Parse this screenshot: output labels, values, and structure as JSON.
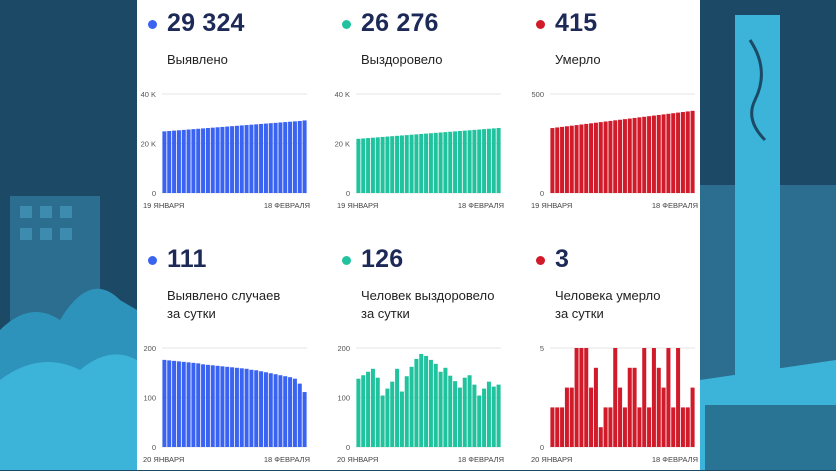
{
  "background": {
    "color": "#1c4a66",
    "accent": "#3cb4d9"
  },
  "cards": [
    {
      "value": "29 324",
      "label1": "Выявлено",
      "label2": "",
      "color": "#3a63f2",
      "chart_data": {
        "type": "bar",
        "yticks": [
          "0",
          "20 K",
          "40 K"
        ],
        "ylim": [
          0,
          40000
        ],
        "xstart": "19 ЯНВАРЯ",
        "xend": "18 ФЕВРАЛЯ",
        "values": [
          24900,
          25050,
          25200,
          25350,
          25500,
          25650,
          25800,
          25950,
          26100,
          26250,
          26400,
          26550,
          26700,
          26850,
          27000,
          27150,
          27300,
          27450,
          27600,
          27750,
          27900,
          28050,
          28200,
          28350,
          28500,
          28650,
          28800,
          28950,
          29100,
          29324
        ]
      }
    },
    {
      "value": "26 276",
      "label1": "Выздоровело",
      "label2": "",
      "color": "#21c39e",
      "chart_data": {
        "type": "bar",
        "yticks": [
          "0",
          "20 K",
          "40 K"
        ],
        "ylim": [
          0,
          40000
        ],
        "xstart": "19 ЯНВАРЯ",
        "xend": "18 ФЕВРАЛЯ",
        "values": [
          21900,
          22050,
          22200,
          22350,
          22500,
          22650,
          22800,
          22950,
          23100,
          23250,
          23400,
          23550,
          23700,
          23850,
          24000,
          24150,
          24300,
          24450,
          24600,
          24750,
          24900,
          25050,
          25200,
          25350,
          25500,
          25650,
          25800,
          25950,
          26100,
          26276
        ]
      }
    },
    {
      "value": "415",
      "label1": "Умерло",
      "label2": "",
      "color": "#d11a2a",
      "chart_data": {
        "type": "bar",
        "yticks": [
          "0",
          "500"
        ],
        "ylim": [
          0,
          500
        ],
        "xstart": "19 ЯНВАРЯ",
        "xend": "18 ФЕВРАЛЯ",
        "values": [
          328,
          331,
          334,
          337,
          340,
          343,
          346,
          349,
          352,
          355,
          358,
          361,
          364,
          367,
          370,
          373,
          376,
          379,
          382,
          385,
          388,
          391,
          394,
          397,
          400,
          403,
          406,
          409,
          412,
          415
        ]
      }
    },
    {
      "value": "111",
      "label1": "Выявлено случаев",
      "label2": "за сутки",
      "color": "#3a63f2",
      "chart_data": {
        "type": "bar",
        "yticks": [
          "0",
          "100",
          "200"
        ],
        "ylim": [
          0,
          200
        ],
        "xstart": "20 ЯНВАРЯ",
        "xend": "18 ФЕВРАЛЯ",
        "values": [
          176,
          175,
          174,
          173,
          172,
          171,
          170,
          169,
          167,
          166,
          165,
          164,
          163,
          162,
          161,
          160,
          159,
          158,
          156,
          155,
          153,
          151,
          149,
          147,
          145,
          143,
          141,
          138,
          128,
          111
        ]
      }
    },
    {
      "value": "126",
      "label1": "Человек выздоровело",
      "label2": "за сутки",
      "color": "#21c39e",
      "chart_data": {
        "type": "bar",
        "yticks": [
          "0",
          "100",
          "200"
        ],
        "ylim": [
          0,
          200
        ],
        "xstart": "20 ЯНВАРЯ",
        "xend": "18 ФЕВРАЛЯ",
        "values": [
          138,
          145,
          152,
          158,
          140,
          104,
          118,
          132,
          158,
          112,
          143,
          162,
          178,
          188,
          184,
          176,
          168,
          152,
          160,
          144,
          133,
          120,
          140,
          145,
          126,
          104,
          118,
          132,
          122,
          126
        ]
      }
    },
    {
      "value": "3",
      "label1": "Человека умерло",
      "label2": "за сутки",
      "color": "#d11a2a",
      "chart_data": {
        "type": "bar",
        "yticks": [
          "0",
          "5"
        ],
        "ylim": [
          0,
          5
        ],
        "xstart": "20 ЯНВАРЯ",
        "xend": "18 ФЕВРАЛЯ",
        "values": [
          2,
          2,
          2,
          3,
          3,
          5,
          5,
          5,
          3,
          4,
          1,
          2,
          2,
          5,
          3,
          2,
          4,
          4,
          2,
          5,
          2,
          5,
          4,
          3,
          5,
          2,
          5,
          2,
          2,
          3
        ]
      }
    }
  ]
}
